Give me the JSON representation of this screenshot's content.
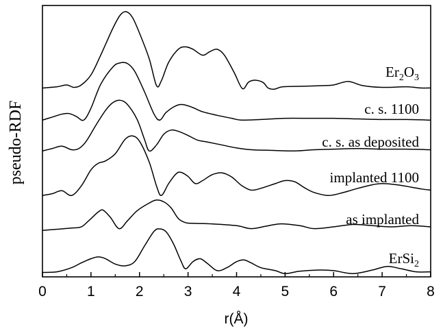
{
  "chart_data": {
    "type": "line",
    "xlabel": "r(Å)",
    "ylabel": "pseudo-RDF",
    "xlim": [
      0,
      8
    ],
    "xticks": [
      "0",
      "1",
      "2",
      "3",
      "4",
      "5",
      "6",
      "7",
      "8"
    ],
    "y_ticks_shown": false,
    "grid": false,
    "stacked_offset_curves": true,
    "series": [
      {
        "name": "Er₂O₃",
        "points": [
          [
            0,
            0.03
          ],
          [
            0.3,
            0.05
          ],
          [
            0.5,
            0.08
          ],
          [
            0.65,
            0.04
          ],
          [
            0.8,
            0.08
          ],
          [
            1.0,
            0.25
          ],
          [
            1.2,
            0.58
          ],
          [
            1.45,
            1.03
          ],
          [
            1.6,
            1.25
          ],
          [
            1.72,
            1.31
          ],
          [
            1.85,
            1.22
          ],
          [
            2.0,
            0.95
          ],
          [
            2.2,
            0.52
          ],
          [
            2.35,
            0.07
          ],
          [
            2.45,
            0.15
          ],
          [
            2.6,
            0.46
          ],
          [
            2.8,
            0.68
          ],
          [
            2.95,
            0.72
          ],
          [
            3.1,
            0.68
          ],
          [
            3.3,
            0.58
          ],
          [
            3.45,
            0.64
          ],
          [
            3.6,
            0.68
          ],
          [
            3.75,
            0.58
          ],
          [
            3.95,
            0.29
          ],
          [
            4.12,
            0.02
          ],
          [
            4.25,
            0.13
          ],
          [
            4.4,
            0.16
          ],
          [
            4.55,
            0.12
          ],
          [
            4.65,
            0.03
          ],
          [
            4.78,
            0.01
          ],
          [
            4.95,
            0.05
          ],
          [
            5.4,
            0.06
          ],
          [
            5.8,
            0.07
          ],
          [
            6.0,
            0.08
          ],
          [
            6.3,
            0.14
          ],
          [
            6.6,
            0.07
          ],
          [
            7.0,
            0.04
          ],
          [
            7.5,
            0.05
          ],
          [
            7.8,
            0.03
          ],
          [
            8,
            0.03
          ]
        ]
      },
      {
        "name": "c. s. 1100",
        "points": [
          [
            0,
            0.02
          ],
          [
            0.2,
            0.07
          ],
          [
            0.4,
            0.12
          ],
          [
            0.55,
            0.13
          ],
          [
            0.7,
            0.08
          ],
          [
            0.85,
            0.02
          ],
          [
            1.0,
            0.22
          ],
          [
            1.2,
            0.62
          ],
          [
            1.45,
            0.91
          ],
          [
            1.6,
            0.98
          ],
          [
            1.75,
            0.97
          ],
          [
            1.9,
            0.84
          ],
          [
            2.1,
            0.5
          ],
          [
            2.3,
            0.12
          ],
          [
            2.42,
            0.02
          ],
          [
            2.55,
            0.15
          ],
          [
            2.75,
            0.26
          ],
          [
            2.9,
            0.28
          ],
          [
            3.1,
            0.23
          ],
          [
            3.3,
            0.16
          ],
          [
            3.6,
            0.1
          ],
          [
            3.9,
            0.05
          ],
          [
            4.1,
            0.02
          ],
          [
            4.5,
            0.03
          ],
          [
            5.0,
            0.05
          ],
          [
            5.5,
            0.05
          ],
          [
            6.0,
            0.05
          ],
          [
            6.5,
            0.04
          ],
          [
            7.0,
            0.03
          ],
          [
            7.5,
            0.03
          ],
          [
            8,
            0.02
          ]
        ]
      },
      {
        "name": "c. s. as deposited",
        "points": [
          [
            0,
            0.02
          ],
          [
            0.2,
            0.06
          ],
          [
            0.4,
            0.1
          ],
          [
            0.6,
            0.04
          ],
          [
            0.75,
            0.06
          ],
          [
            0.9,
            0.18
          ],
          [
            1.1,
            0.45
          ],
          [
            1.3,
            0.7
          ],
          [
            1.45,
            0.83
          ],
          [
            1.6,
            0.87
          ],
          [
            1.75,
            0.8
          ],
          [
            1.95,
            0.55
          ],
          [
            2.1,
            0.22
          ],
          [
            2.2,
            0.02
          ],
          [
            2.35,
            0.12
          ],
          [
            2.5,
            0.3
          ],
          [
            2.65,
            0.37
          ],
          [
            2.8,
            0.35
          ],
          [
            3.0,
            0.28
          ],
          [
            3.2,
            0.2
          ],
          [
            3.4,
            0.17
          ],
          [
            3.7,
            0.12
          ],
          [
            4.0,
            0.07
          ],
          [
            4.3,
            0.04
          ],
          [
            4.7,
            0.03
          ],
          [
            5.2,
            0.02
          ],
          [
            5.6,
            0.04
          ],
          [
            6.0,
            0.05
          ],
          [
            6.5,
            0.06
          ],
          [
            7.0,
            0.05
          ],
          [
            7.5,
            0.05
          ],
          [
            8,
            0.04
          ]
        ]
      },
      {
        "name": "implanted 1100",
        "points": [
          [
            0,
            0.02
          ],
          [
            0.2,
            0.05
          ],
          [
            0.4,
            0.1
          ],
          [
            0.6,
            0.02
          ],
          [
            0.8,
            0.18
          ],
          [
            1.0,
            0.45
          ],
          [
            1.15,
            0.56
          ],
          [
            1.3,
            0.6
          ],
          [
            1.5,
            0.72
          ],
          [
            1.7,
            0.96
          ],
          [
            1.85,
            1.02
          ],
          [
            2.0,
            0.93
          ],
          [
            2.2,
            0.58
          ],
          [
            2.35,
            0.18
          ],
          [
            2.45,
            0.02
          ],
          [
            2.6,
            0.22
          ],
          [
            2.75,
            0.38
          ],
          [
            2.85,
            0.41
          ],
          [
            3.0,
            0.34
          ],
          [
            3.15,
            0.22
          ],
          [
            3.3,
            0.27
          ],
          [
            3.5,
            0.37
          ],
          [
            3.7,
            0.4
          ],
          [
            3.9,
            0.33
          ],
          [
            4.1,
            0.19
          ],
          [
            4.3,
            0.11
          ],
          [
            4.5,
            0.14
          ],
          [
            4.8,
            0.22
          ],
          [
            5.0,
            0.27
          ],
          [
            5.2,
            0.25
          ],
          [
            5.4,
            0.15
          ],
          [
            5.6,
            0.07
          ],
          [
            5.9,
            0.02
          ],
          [
            6.2,
            0.07
          ],
          [
            6.5,
            0.14
          ],
          [
            6.8,
            0.2
          ],
          [
            7.0,
            0.22
          ],
          [
            7.3,
            0.2
          ],
          [
            7.6,
            0.16
          ],
          [
            7.8,
            0.13
          ],
          [
            8,
            0.11
          ]
        ]
      },
      {
        "name": "as implanted",
        "points": [
          [
            0,
            0.02
          ],
          [
            0.3,
            0.04
          ],
          [
            0.6,
            0.06
          ],
          [
            0.8,
            0.08
          ],
          [
            0.95,
            0.18
          ],
          [
            1.15,
            0.33
          ],
          [
            1.25,
            0.36
          ],
          [
            1.4,
            0.24
          ],
          [
            1.58,
            0.05
          ],
          [
            1.75,
            0.18
          ],
          [
            1.95,
            0.35
          ],
          [
            2.2,
            0.48
          ],
          [
            2.35,
            0.53
          ],
          [
            2.5,
            0.5
          ],
          [
            2.65,
            0.4
          ],
          [
            2.8,
            0.22
          ],
          [
            2.95,
            0.15
          ],
          [
            3.1,
            0.14
          ],
          [
            3.5,
            0.13
          ],
          [
            4.0,
            0.1
          ],
          [
            4.3,
            0.05
          ],
          [
            4.6,
            0.09
          ],
          [
            4.9,
            0.13
          ],
          [
            5.3,
            0.1
          ],
          [
            5.6,
            0.05
          ],
          [
            6.0,
            0.08
          ],
          [
            6.4,
            0.12
          ],
          [
            6.8,
            0.1
          ],
          [
            7.2,
            0.08
          ],
          [
            7.6,
            0.1
          ],
          [
            8,
            0.08
          ]
        ]
      },
      {
        "name": "ErSi₂",
        "points": [
          [
            0,
            0.04
          ],
          [
            0.3,
            0.05
          ],
          [
            0.6,
            0.12
          ],
          [
            0.8,
            0.2
          ],
          [
            1.0,
            0.27
          ],
          [
            1.15,
            0.3
          ],
          [
            1.3,
            0.27
          ],
          [
            1.5,
            0.18
          ],
          [
            1.7,
            0.15
          ],
          [
            1.9,
            0.22
          ],
          [
            2.1,
            0.48
          ],
          [
            2.3,
            0.73
          ],
          [
            2.42,
            0.77
          ],
          [
            2.55,
            0.72
          ],
          [
            2.7,
            0.52
          ],
          [
            2.85,
            0.24
          ],
          [
            2.95,
            0.1
          ],
          [
            3.1,
            0.22
          ],
          [
            3.25,
            0.27
          ],
          [
            3.4,
            0.19
          ],
          [
            3.6,
            0.07
          ],
          [
            3.8,
            0.12
          ],
          [
            4.0,
            0.22
          ],
          [
            4.15,
            0.25
          ],
          [
            4.3,
            0.2
          ],
          [
            4.5,
            0.12
          ],
          [
            4.8,
            0.07
          ],
          [
            5.0,
            0.02
          ],
          [
            5.3,
            0.06
          ],
          [
            5.7,
            0.08
          ],
          [
            6.0,
            0.07
          ],
          [
            6.4,
            0.02
          ],
          [
            6.8,
            0.08
          ],
          [
            7.1,
            0.14
          ],
          [
            7.4,
            0.1
          ],
          [
            7.7,
            0.05
          ],
          [
            8,
            0.05
          ]
        ]
      }
    ]
  }
}
